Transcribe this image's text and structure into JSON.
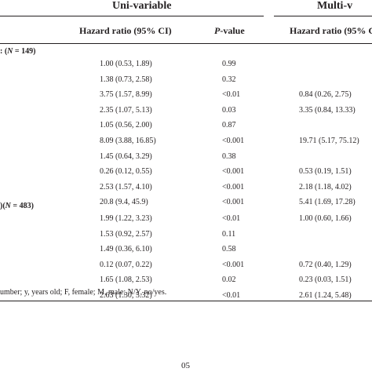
{
  "headers": {
    "uni_variable": "Uni-variable",
    "multi_variable": "Multi-v",
    "hazard_ratio_1": "Hazard ratio (95% CI)",
    "p_value": "-value",
    "p_value_italic": "P",
    "hazard_ratio_2": "Hazard ratio (95% C"
  },
  "sections": [
    {
      "label": "(N = 149)",
      "label_prefix": "",
      "label_n": "N",
      "label_value": " = 149)",
      "label_lead": ": ("
    },
    {
      "label": "(N = 483)",
      "label_lead": ")(",
      "label_n": "N",
      "label_value": " = 483)"
    }
  ],
  "section_one_rows": [
    {
      "hr": "1.00 (0.53, 1.89)",
      "p": "0.99",
      "hr2": ""
    },
    {
      "hr": "1.38 (0.73, 2.58)",
      "p": "0.32",
      "hr2": ""
    },
    {
      "hr": "3.75 (1.57, 8.99)",
      "p": "<0.01",
      "hr2": "0.84 (0.26, 2.75)"
    },
    {
      "hr": "2.35 (1.07, 5.13)",
      "p": "0.03",
      "hr2": "3.35 (0.84, 13.33)"
    },
    {
      "hr": "1.05 (0.56, 2.00)",
      "p": "0.87",
      "hr2": ""
    },
    {
      "hr": "8.09 (3.88, 16.85)",
      "p": "<0.001",
      "hr2": "19.71 (5.17, 75.12)"
    },
    {
      "hr": "1.45 (0.64, 3.29)",
      "p": "0.38",
      "hr2": ""
    },
    {
      "hr": "0.26 (0.12, 0.55)",
      "p": "<0.001",
      "hr2": "0.53 (0.19, 1.51)"
    },
    {
      "hr": "2.53 (1.57, 4.10)",
      "p": "<0.001",
      "hr2": "2.18 (1.18, 4.02)"
    },
    {
      "hr": "20.8 (9.4, 45.9)",
      "p": "<0.001",
      "hr2": "5.41 (1.69, 17.28)"
    }
  ],
  "section_two_rows": [
    {
      "hr": "1.99 (1.22, 3.23)",
      "p": "<0.01",
      "hr2": "1.00 (0.60, 1.66)"
    },
    {
      "hr": "1.53 (0.92, 2.57)",
      "p": "0.11",
      "hr2": ""
    },
    {
      "hr": "1.49 (0.36, 6.10)",
      "p": "0.58",
      "hr2": ""
    },
    {
      "hr": "0.12 (0.07, 0.22)",
      "p": "<0.001",
      "hr2": "0.72 (0.40, 1.29)"
    },
    {
      "hr": "1.65 (1.08, 2.53)",
      "p": "0.02",
      "hr2": "0.23 (0.03, 1.51)"
    },
    {
      "hr": "2.63 (1.30, 5.32)",
      "p": "<0.01",
      "hr2": "2.61 (1.24, 5.48)"
    }
  ],
  "footnote": "umber; y, years old; F, female; M, male; N/Y, no/yes.",
  "page_number": "05"
}
